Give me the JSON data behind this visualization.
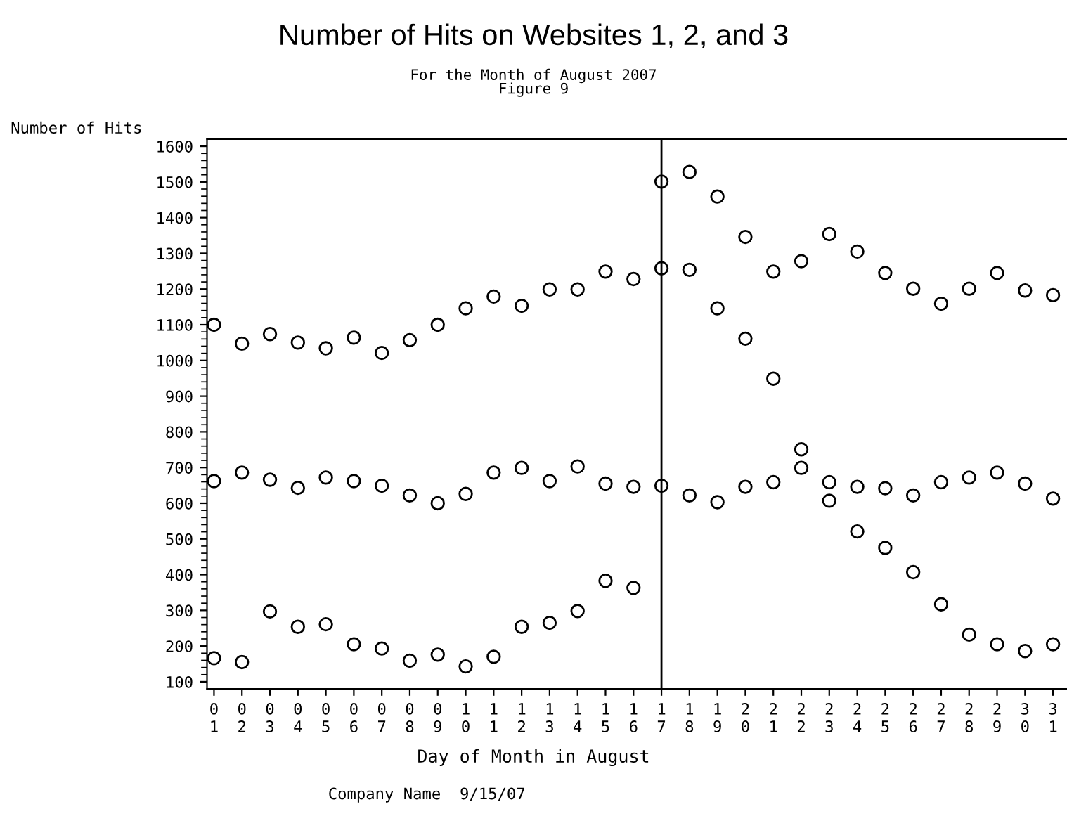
{
  "chart_data": {
    "type": "scatter",
    "title": "Number of Hits on Websites 1, 2, and 3",
    "subtitle": "For the Month of August 2007\nFigure 9",
    "xlabel": "Day of Month in August",
    "ylabel": "Number of Hits",
    "annotations": [
      "Company Name  9/15/07"
    ],
    "categories": [
      "01",
      "02",
      "03",
      "04",
      "05",
      "06",
      "07",
      "08",
      "09",
      "10",
      "11",
      "12",
      "13",
      "14",
      "15",
      "16",
      "17",
      "18",
      "19",
      "20",
      "21",
      "22",
      "23",
      "24",
      "25",
      "26",
      "27",
      "28",
      "29",
      "30",
      "31"
    ],
    "series": [
      {
        "color": "#000000",
        "values": [
          1100,
          1047,
          1074,
          1050,
          1034,
          1064,
          1021,
          1057,
          1100,
          1146,
          1179,
          1153,
          1199,
          1199,
          1249,
          1228,
          1258,
          1254,
          1146,
          1061,
          949,
          751,
          607,
          521,
          475,
          407,
          317,
          232,
          205,
          186,
          205
        ]
      },
      {
        "color": "#000000",
        "values": [
          662,
          686,
          666,
          643,
          672,
          662,
          649,
          622,
          600,
          626,
          686,
          699,
          662,
          703,
          655,
          646,
          649,
          622,
          603,
          646,
          659,
          699,
          659,
          646,
          642,
          622,
          659,
          672,
          686,
          655,
          613
        ]
      },
      {
        "color": "#000000",
        "values": [
          166,
          155,
          297,
          254,
          261,
          205,
          193,
          159,
          176,
          143,
          170,
          254,
          265,
          298,
          383,
          363,
          1501,
          1528,
          1459,
          1346,
          1249,
          1278,
          1354,
          1305,
          1245,
          1201,
          1159,
          1201,
          1245,
          1196,
          1183
        ]
      }
    ],
    "ylim": [
      80,
      1620
    ],
    "yticks": [
      100,
      200,
      300,
      400,
      500,
      600,
      700,
      800,
      900,
      1000,
      1100,
      1200,
      1300,
      1400,
      1500,
      1600
    ],
    "ref_lines": [
      {
        "axis": "x",
        "value": "17",
        "color": "#000000"
      }
    ],
    "marker": "circle",
    "grid": false,
    "legend": false
  }
}
